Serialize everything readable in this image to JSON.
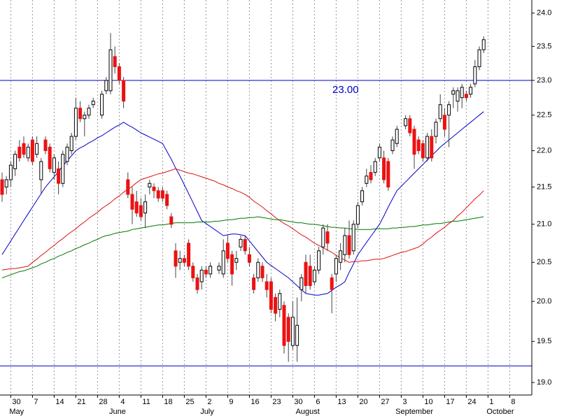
{
  "chart_data": {
    "type": "candlestick",
    "categories": [
      null,
      null,
      "30",
      null,
      null,
      null,
      null,
      "7",
      null,
      null,
      null,
      null,
      "14",
      null,
      null,
      null,
      null,
      "21",
      null,
      null,
      null,
      null,
      "28",
      null,
      null,
      null,
      null,
      "4",
      null,
      null,
      null,
      null,
      "11",
      null,
      null,
      null,
      null,
      "18",
      null,
      null,
      null,
      null,
      "25",
      null,
      null,
      null,
      null,
      "2",
      null,
      null,
      null,
      null,
      "9",
      null,
      null,
      null,
      null,
      "16",
      null,
      null,
      null,
      null,
      "23",
      null,
      null,
      null,
      null,
      "30",
      null,
      null,
      null,
      null,
      "6",
      null,
      null,
      null,
      null,
      "13",
      null,
      null,
      null,
      null,
      "20",
      null,
      null,
      null,
      null,
      "27",
      null,
      null,
      null,
      null,
      "3",
      null,
      null,
      null,
      null,
      "10",
      null,
      null,
      null,
      null,
      "17",
      null,
      null,
      null,
      null,
      "24",
      null,
      null,
      null,
      null,
      "1",
      null,
      null,
      null,
      null,
      "8",
      null,
      null,
      null,
      null
    ],
    "months": [
      "May",
      "June",
      "July",
      "August",
      "September",
      "October"
    ],
    "ohlc": {
      "open": [
        21.6,
        21.5,
        21.6,
        21.75,
        22.05,
        22.1,
        21.9,
        22.15,
        21.95,
        21.6,
        22.15,
        22.05,
        21.7,
        21.75,
        21.55,
        21.85,
        22.0,
        22.2,
        22.6,
        22.45,
        22.5,
        22.65,
        null,
        22.5,
        22.85,
        22.85,
        23.35,
        23.2,
        23.0,
        21.6,
        21.4,
        21.3,
        21.25,
        21.15,
        21.5,
        21.5,
        21.45,
        21.45,
        21.4,
        21.1,
        20.65,
        20.5,
        20.55,
        20.75,
        20.45,
        20.3,
        20.25,
        20.4,
        20.35,
        null,
        20.4,
        20.35,
        20.75,
        20.6,
        20.5,
        20.7,
        20.8,
        20.6,
        20.3,
        20.3,
        20.45,
        20.25,
        20.25,
        20.05,
        19.9,
        19.95,
        19.8,
        19.45,
        19.45,
        20.15,
        20.5,
        20.45,
        20.25,
        20.4,
        20.7,
        20.9,
        20.3,
        20.35,
        20.5,
        20.6,
        20.85,
        20.65,
        21.0,
        21.3,
        21.55,
        21.7,
        21.7,
        21.9,
        21.9,
        21.85,
        22.0,
        22.1,
        null,
        22.35,
        22.45,
        22.3,
        22.15,
        22.1,
        21.9,
        22.2,
        22.2,
        22.45,
        22.5,
        22.5,
        22.8,
        22.7,
        22.75,
        22.8,
        22.8,
        22.95,
        23.2,
        23.45,
        null,
        null,
        null,
        null,
        null,
        null,
        null,
        null,
        null,
        null
      ],
      "high": [
        21.7,
        21.65,
        21.85,
        22.0,
        22.15,
        22.2,
        22.1,
        22.2,
        22.2,
        21.9,
        22.2,
        22.1,
        21.95,
        21.85,
        22.0,
        22.1,
        22.25,
        22.75,
        22.7,
        22.55,
        22.65,
        22.75,
        null,
        22.85,
        23.05,
        23.7,
        23.5,
        23.25,
        23.05,
        21.7,
        21.5,
        21.45,
        21.35,
        21.4,
        21.6,
        21.55,
        21.5,
        21.5,
        21.45,
        21.15,
        20.75,
        20.65,
        20.6,
        20.8,
        20.5,
        20.35,
        20.45,
        20.45,
        20.5,
        null,
        20.5,
        20.8,
        20.85,
        20.65,
        20.65,
        20.85,
        20.85,
        20.7,
        20.35,
        20.55,
        20.5,
        20.35,
        20.3,
        20.1,
        20.15,
        20.0,
        19.85,
        20.0,
        20.05,
        20.35,
        20.6,
        20.6,
        20.45,
        20.7,
        21.0,
        21.0,
        20.35,
        20.6,
        20.75,
        20.95,
        21.05,
        21.05,
        21.3,
        21.5,
        21.75,
        21.8,
        21.9,
        22.1,
        22.0,
        21.9,
        22.2,
        22.35,
        null,
        22.5,
        22.5,
        22.35,
        22.2,
        22.15,
        22.25,
        22.3,
        22.45,
        22.8,
        22.6,
        22.7,
        22.9,
        22.9,
        22.95,
        22.85,
        22.95,
        23.3,
        23.5,
        23.65,
        null,
        null,
        null,
        null,
        null,
        null,
        null,
        null,
        null,
        null
      ],
      "low": [
        21.3,
        21.4,
        21.5,
        21.65,
        21.85,
        21.9,
        21.85,
        21.8,
        21.9,
        21.4,
        21.95,
        21.7,
        21.6,
        21.4,
        21.5,
        21.8,
        21.95,
        22.15,
        22.4,
        22.2,
        22.45,
        22.6,
        null,
        22.45,
        22.8,
        22.8,
        23.1,
        22.95,
        22.6,
        21.35,
        21.0,
        21.1,
        21.05,
        20.95,
        21.4,
        21.35,
        21.3,
        21.3,
        21.2,
        20.95,
        20.3,
        20.4,
        20.45,
        20.4,
        20.25,
        20.1,
        20.15,
        20.3,
        20.3,
        null,
        20.35,
        20.3,
        20.5,
        20.2,
        20.4,
        20.65,
        20.6,
        20.45,
        20.1,
        20.25,
        20.25,
        20.05,
        19.85,
        19.75,
        19.8,
        19.35,
        19.25,
        19.4,
        19.25,
        20.0,
        20.1,
        20.15,
        20.2,
        20.35,
        20.6,
        20.65,
        19.85,
        20.25,
        20.4,
        20.5,
        20.55,
        20.6,
        20.95,
        21.25,
        21.5,
        21.55,
        21.65,
        21.85,
        21.55,
        21.45,
        21.95,
        22.05,
        null,
        22.3,
        22.2,
        21.75,
        21.95,
        21.85,
        21.85,
        21.85,
        22.1,
        22.4,
        22.2,
        22.05,
        22.6,
        22.55,
        22.6,
        22.7,
        22.75,
        22.9,
        23.15,
        23.4,
        null,
        null,
        null,
        null,
        null,
        null,
        null,
        null,
        null,
        null
      ],
      "close": [
        21.4,
        21.6,
        21.8,
        21.95,
        21.9,
        21.95,
        22.05,
        21.85,
        22.1,
        21.85,
        22.0,
        21.75,
        21.9,
        21.55,
        21.95,
        22.05,
        22.2,
        22.6,
        22.45,
        22.5,
        22.6,
        22.7,
        null,
        22.8,
        23.0,
        23.45,
        23.2,
        23.0,
        22.7,
        21.4,
        21.2,
        21.15,
        21.1,
        21.3,
        21.55,
        21.45,
        21.35,
        21.35,
        21.25,
        21.0,
        20.45,
        20.55,
        20.5,
        20.45,
        20.3,
        20.15,
        20.4,
        20.35,
        20.45,
        null,
        20.45,
        20.65,
        20.55,
        20.35,
        20.55,
        20.8,
        20.65,
        20.5,
        20.15,
        20.5,
        20.3,
        20.15,
        19.9,
        19.85,
        20.1,
        19.45,
        19.5,
        19.8,
        19.7,
        20.3,
        20.2,
        20.2,
        20.4,
        20.65,
        20.95,
        20.75,
        20.15,
        20.55,
        20.65,
        20.85,
        20.6,
        21.0,
        21.25,
        21.45,
        21.65,
        21.6,
        21.85,
        22.05,
        21.6,
        21.5,
        22.15,
        22.3,
        null,
        22.45,
        22.25,
        21.95,
        22.0,
        21.9,
        22.2,
        21.9,
        22.4,
        22.65,
        22.3,
        22.65,
        22.85,
        22.85,
        22.9,
        22.75,
        22.9,
        23.2,
        23.45,
        23.6,
        null,
        null,
        null,
        null,
        null,
        null,
        null,
        null,
        null,
        null
      ],
      "up_color": "#ffffff",
      "down_color": "#ee1111"
    },
    "lines": [
      {
        "color": "#0000cc",
        "values": [
          20.6,
          20.69,
          20.78,
          20.87,
          20.96,
          21.05,
          21.14,
          21.23,
          21.32,
          21.41,
          21.5,
          21.57,
          21.64,
          21.71,
          21.79,
          21.86,
          21.93,
          22.0,
          22.04,
          22.07,
          22.11,
          22.14,
          22.18,
          22.21,
          22.25,
          22.29,
          22.33,
          22.36,
          22.4,
          22.36,
          22.33,
          22.29,
          22.25,
          22.22,
          22.19,
          22.16,
          22.13,
          22.1,
          21.99,
          21.88,
          21.76,
          21.65,
          21.53,
          21.41,
          21.29,
          21.17,
          21.05,
          21.01,
          20.97,
          20.93,
          20.89,
          20.85,
          20.86,
          20.87,
          20.87,
          20.86,
          20.85,
          20.78,
          20.71,
          20.64,
          20.57,
          20.5,
          20.46,
          20.42,
          20.38,
          20.34,
          20.3,
          20.25,
          20.2,
          20.15,
          20.1,
          20.09,
          20.08,
          20.08,
          20.09,
          20.1,
          20.14,
          20.18,
          20.21,
          20.25,
          20.37,
          20.48,
          20.6,
          20.68,
          20.76,
          20.84,
          20.92,
          21.0,
          21.11,
          21.23,
          21.34,
          21.45,
          21.51,
          21.57,
          21.63,
          21.69,
          21.75,
          21.81,
          21.87,
          21.93,
          21.99,
          22.05,
          22.1,
          22.15,
          22.2,
          22.25,
          22.3,
          22.35,
          22.4,
          22.45,
          22.5,
          22.55,
          null,
          null,
          null,
          null,
          null,
          null,
          null,
          null,
          null,
          null
        ]
      },
      {
        "color": "#dd1111",
        "values": [
          20.4,
          20.41,
          20.42,
          20.42,
          20.43,
          20.44,
          20.45,
          20.5,
          20.54,
          20.59,
          20.63,
          20.68,
          20.72,
          20.77,
          20.81,
          20.86,
          20.9,
          20.94,
          20.99,
          21.03,
          21.08,
          21.12,
          21.16,
          21.21,
          21.25,
          21.29,
          21.34,
          21.38,
          21.43,
          21.47,
          21.51,
          21.56,
          21.6,
          21.62,
          21.64,
          21.66,
          21.68,
          21.69,
          21.71,
          21.73,
          21.75,
          21.73,
          21.71,
          21.69,
          21.68,
          21.66,
          21.64,
          21.62,
          21.6,
          21.58,
          21.55,
          21.53,
          21.5,
          21.48,
          21.45,
          21.43,
          21.4,
          21.36,
          21.31,
          21.27,
          21.23,
          21.18,
          21.14,
          21.09,
          21.05,
          21.01,
          20.98,
          20.94,
          20.9,
          20.86,
          20.83,
          20.79,
          20.75,
          20.72,
          20.69,
          20.66,
          20.63,
          20.59,
          20.56,
          20.53,
          20.5,
          20.51,
          20.51,
          20.52,
          20.52,
          20.53,
          20.54,
          20.54,
          20.55,
          20.57,
          20.59,
          20.61,
          20.63,
          20.64,
          20.66,
          20.68,
          20.7,
          20.74,
          20.79,
          20.83,
          20.88,
          20.92,
          20.96,
          21.01,
          21.05,
          21.11,
          21.16,
          21.22,
          21.28,
          21.34,
          21.39,
          21.45,
          null,
          null,
          null,
          null,
          null,
          null,
          null,
          null,
          null,
          null
        ]
      },
      {
        "color": "#007700",
        "values": [
          20.3,
          20.32,
          20.34,
          20.36,
          20.38,
          20.39,
          20.41,
          20.43,
          20.45,
          20.48,
          20.5,
          20.53,
          20.55,
          20.58,
          20.6,
          20.63,
          20.65,
          20.68,
          20.7,
          20.73,
          20.75,
          20.78,
          20.8,
          20.83,
          20.85,
          20.86,
          20.88,
          20.89,
          20.9,
          20.91,
          20.93,
          20.94,
          20.95,
          20.96,
          20.97,
          20.98,
          20.99,
          20.99,
          21.0,
          21.01,
          21.02,
          21.02,
          21.02,
          21.02,
          21.02,
          21.03,
          21.03,
          21.03,
          21.03,
          21.04,
          21.04,
          21.05,
          21.06,
          21.06,
          21.07,
          21.08,
          21.08,
          21.09,
          21.09,
          21.1,
          21.09,
          21.08,
          21.07,
          21.06,
          21.06,
          21.05,
          21.04,
          21.03,
          21.02,
          21.02,
          21.01,
          21.0,
          21.0,
          20.99,
          20.98,
          20.97,
          20.96,
          20.96,
          20.95,
          20.95,
          20.94,
          20.94,
          20.93,
          20.93,
          20.93,
          20.93,
          20.94,
          20.94,
          20.94,
          20.94,
          20.95,
          20.95,
          20.96,
          20.96,
          20.97,
          20.97,
          20.98,
          20.99,
          20.99,
          21.0,
          21.01,
          21.01,
          21.02,
          21.03,
          21.04,
          21.04,
          21.05,
          21.06,
          21.07,
          21.08,
          21.09,
          21.1,
          null,
          null,
          null,
          null,
          null,
          null,
          null,
          null,
          null,
          null
        ]
      }
    ],
    "hlines": [
      {
        "value": 23.0,
        "label": "23.00",
        "color": "#0000cc"
      },
      {
        "value": 19.2,
        "color": "#0000cc"
      }
    ],
    "ylim": [
      18.85,
      24.2
    ],
    "log_scale": true,
    "yticks": [
      {
        "value": 19,
        "label": "19.0"
      },
      {
        "value": 19.5,
        "label": "19.5"
      },
      {
        "value": 20,
        "label": "20.0"
      },
      {
        "value": 20.5,
        "label": "20.5"
      },
      {
        "value": 21,
        "label": "21.0"
      },
      {
        "value": 21.5,
        "label": "21.5"
      },
      {
        "value": 22,
        "label": "22.0"
      },
      {
        "value": 22.5,
        "label": "22.5"
      },
      {
        "value": 23,
        "label": "23.0"
      },
      {
        "value": 23.5,
        "label": "23.5"
      },
      {
        "value": 24,
        "label": "24.0"
      }
    ],
    "grid": true
  }
}
